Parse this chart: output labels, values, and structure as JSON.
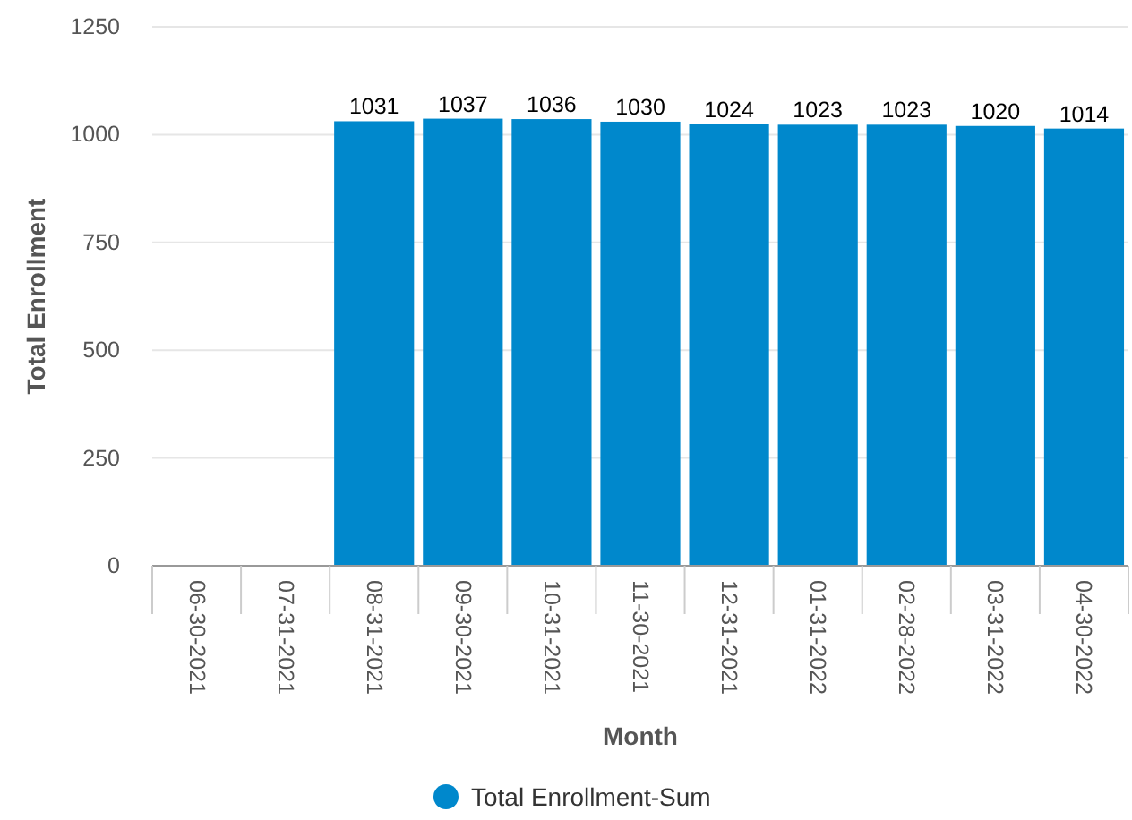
{
  "chart_data": {
    "type": "bar",
    "xlabel": "Month",
    "ylabel": "Total Enrollment",
    "categories": [
      "06-30-2021",
      "07-31-2021",
      "08-31-2021",
      "09-30-2021",
      "10-31-2021",
      "11-30-2021",
      "12-31-2021",
      "01-31-2022",
      "02-28-2022",
      "03-31-2022",
      "04-30-2022"
    ],
    "series": [
      {
        "name": "Total Enrollment-Sum",
        "color": "#0088cc",
        "values": [
          null,
          null,
          1031,
          1037,
          1036,
          1030,
          1024,
          1023,
          1023,
          1020,
          1014
        ]
      }
    ],
    "ylim": [
      0,
      1250
    ],
    "yticks": [
      0,
      250,
      500,
      750,
      1000,
      1250
    ],
    "grid": "y",
    "data_labels": true,
    "legend": "bottom"
  }
}
